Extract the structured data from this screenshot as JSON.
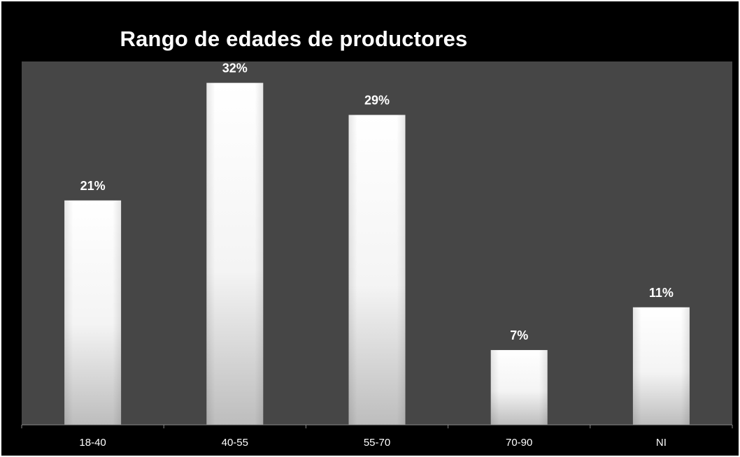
{
  "chart_data": {
    "type": "bar",
    "title": "Rango de edades de productores",
    "categories": [
      "18-40",
      "40-55",
      "55-70",
      "70-90",
      "NI"
    ],
    "values": [
      21,
      32,
      29,
      7,
      11
    ],
    "data_labels": [
      "21%",
      "32%",
      "29%",
      "7%",
      "11%"
    ],
    "value_unit": "%",
    "ylim": [
      0,
      34
    ],
    "grid": false,
    "legend": "none"
  },
  "colors": {
    "background": "#000000",
    "plot_area": "#464646",
    "bar_fill": "#ffffff",
    "text": "#ffffff"
  }
}
